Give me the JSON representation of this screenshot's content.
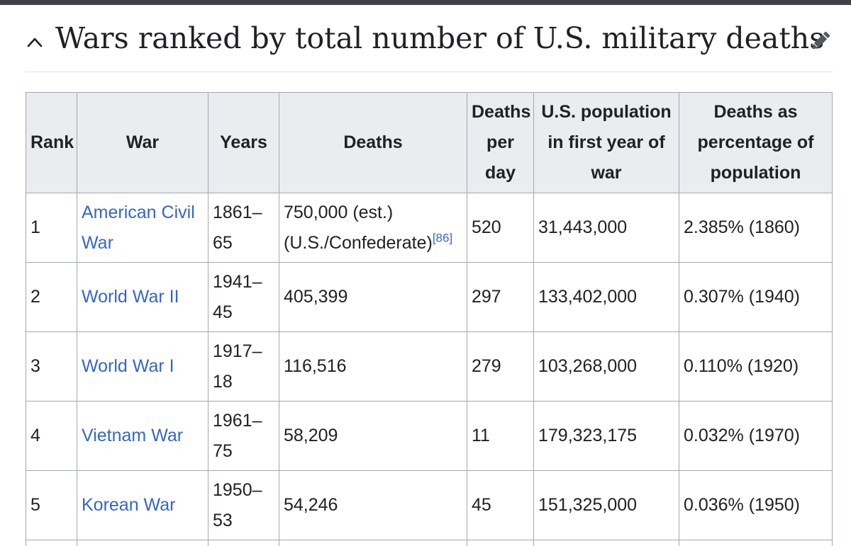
{
  "section": {
    "title": "Wars ranked by total number of U.S. military deaths",
    "collapse_icon": "chevron-up-icon",
    "edit_icon": "pencil-icon"
  },
  "table": {
    "headers": {
      "rank": "Rank",
      "war": "War",
      "years": "Years",
      "deaths": "Deaths",
      "deaths_per_day": "Deaths per day",
      "us_population": "U.S. population in first year of war",
      "deaths_pct": "Deaths as percentage of population"
    },
    "rows": [
      {
        "rank": "1",
        "war": "American Civil War",
        "years": "1861–65",
        "deaths": "750,000 (est.) (U.S./Confederate)",
        "deaths_ref": "[86]",
        "deaths_per_day": "520",
        "population": "31,443,000",
        "pct": "2.385% (1860)"
      },
      {
        "rank": "2",
        "war": "World War II",
        "years": "1941–45",
        "deaths": "405,399",
        "deaths_per_day": "297",
        "population": "133,402,000",
        "pct": "0.307% (1940)"
      },
      {
        "rank": "3",
        "war": "World War I",
        "years": "1917–18",
        "deaths": "116,516",
        "deaths_per_day": "279",
        "population": "103,268,000",
        "pct": "0.110% (1920)"
      },
      {
        "rank": "4",
        "war": "Vietnam War",
        "years": "1961–75",
        "deaths": "58,209",
        "deaths_per_day": "11",
        "population": "179,323,175",
        "pct": "0.032% (1970)"
      },
      {
        "rank": "5",
        "war": "Korean War",
        "years": "1950–53",
        "deaths": "54,246",
        "deaths_per_day": "45",
        "population": "151,325,000",
        "pct": "0.036% (1950)"
      }
    ]
  },
  "colors": {
    "link": "#3366cc",
    "header_bg": "#eaecf0",
    "border": "#a2a9b1",
    "text": "#202122",
    "top_bar": "#3f4144"
  }
}
